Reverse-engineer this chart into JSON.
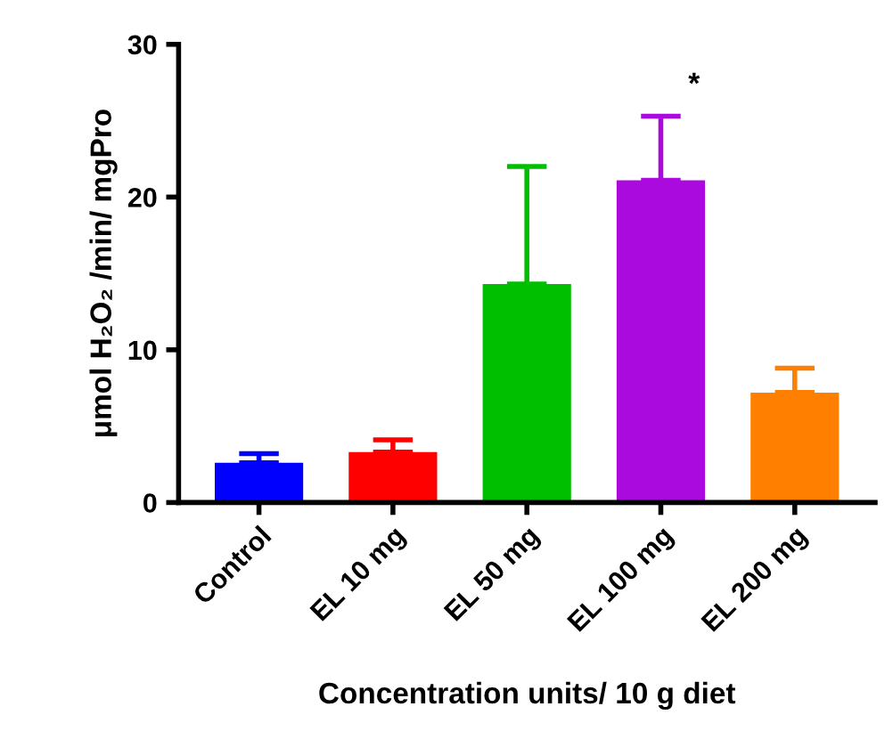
{
  "chart_data": {
    "type": "bar",
    "xlabel": "Concentration units/ 10 g diet",
    "ylabel": "μmol H₂O₂ /min/ mgPro",
    "categories": [
      "Control",
      "EL 10 mg",
      "EL 50 mg",
      "EL 100 mg",
      "EL 200 mg"
    ],
    "values": [
      2.6,
      3.3,
      14.3,
      21.1,
      7.2
    ],
    "colors": [
      "#0000ff",
      "#ff0000",
      "#00bf00",
      "#ab0ade",
      "#ff8000"
    ],
    "errors": [
      [
        2.6,
        3.2
      ],
      [
        3.3,
        4.1
      ],
      [
        14.3,
        22.0
      ],
      [
        21.1,
        25.3
      ],
      [
        7.2,
        8.8
      ]
    ],
    "ylim": [
      0,
      30
    ],
    "yticks": [
      0,
      10,
      20,
      30
    ],
    "grid": false,
    "annotations": [
      "*"
    ]
  }
}
